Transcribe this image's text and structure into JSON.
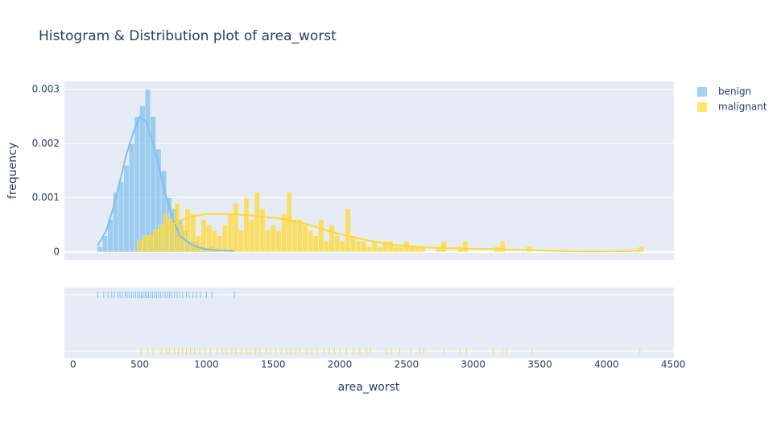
{
  "chart_data": [
    {
      "type": "histogram",
      "title": "Histogram & Distribution plot of area_worst",
      "y_label": "frequency",
      "xlim": [
        -65,
        4505
      ],
      "ylim": [
        -0.00015,
        0.00315
      ],
      "yticks": [
        0,
        0.001,
        0.002,
        0.003
      ],
      "grid": true,
      "legend": "top-right",
      "series": [
        {
          "name": "benign",
          "color": "#7fbfec",
          "bins": [
            180,
            220,
            260,
            300,
            340,
            380,
            420,
            460,
            500,
            540,
            580,
            620,
            660,
            700,
            740,
            780,
            820,
            860,
            900,
            940,
            980,
            1020,
            1060,
            1100,
            1140,
            1180,
            1220
          ],
          "values": [
            0.0001,
            0.0003,
            0.0006,
            0.0011,
            0.0013,
            0.0016,
            0.002,
            0.0025,
            0.0027,
            0.003,
            0.0025,
            0.0019,
            0.0015,
            0.001,
            0.0008,
            0.0006,
            0.0004,
            0.0002,
            0.0002,
            0.0001,
            5e-05,
            0.0001,
            3e-05,
            0,
            3e-05,
            5e-05
          ],
          "kde_x": [
            185,
            250,
            300,
            350,
            400,
            450,
            500,
            550,
            600,
            650,
            700,
            750,
            800,
            850,
            900,
            950,
            1000,
            1100,
            1210
          ],
          "kde_y": [
            0.00012,
            0.0004,
            0.0008,
            0.0013,
            0.0018,
            0.0022,
            0.0025,
            0.0024,
            0.002,
            0.0015,
            0.001,
            0.0006,
            0.0003,
            0.0002,
            0.00012,
            8e-05,
            5e-05,
            3e-05,
            2e-05
          ]
        },
        {
          "name": "malignant",
          "color": "#ffd92f",
          "bins": [
            480,
            520,
            560,
            600,
            640,
            680,
            720,
            760,
            800,
            840,
            880,
            920,
            960,
            1000,
            1040,
            1080,
            1120,
            1160,
            1200,
            1240,
            1280,
            1320,
            1360,
            1400,
            1440,
            1480,
            1520,
            1560,
            1600,
            1640,
            1680,
            1720,
            1760,
            1800,
            1840,
            1880,
            1920,
            1960,
            2000,
            2040,
            2080,
            2120,
            2160,
            2200,
            2240,
            2280,
            2320,
            2360,
            2400,
            2440,
            2480,
            2520,
            2560,
            2600,
            2640,
            2680,
            2720,
            2760,
            2800,
            2840,
            2880,
            2920,
            2960,
            3000,
            3040,
            3080,
            3120,
            3160,
            3200,
            3240,
            3280,
            3320,
            3360,
            3400,
            3440,
            3480,
            3520,
            3560,
            3600,
            3640,
            3680,
            3720,
            3760,
            3800,
            3840,
            3880,
            3920,
            3960,
            4000,
            4040,
            4080,
            4120,
            4160,
            4200,
            4240,
            4280
          ],
          "values": [
            0.0002,
            0.0003,
            0.0003,
            0.0004,
            0.0005,
            0.0007,
            0.0006,
            0.0009,
            0.0005,
            0.0008,
            0.0007,
            0.0003,
            0.0006,
            0.0005,
            0.0004,
            0.0003,
            0.0005,
            0.0007,
            0.0009,
            0.0004,
            0.001,
            0.0006,
            0.0011,
            0.0008,
            0.0004,
            0.0005,
            0.0004,
            0.0007,
            0.0011,
            0.0006,
            0.0006,
            0.0005,
            0.0004,
            0.0003,
            0.0006,
            0.0002,
            0.0005,
            0.0003,
            0.0002,
            0.0008,
            0.0003,
            0.0002,
            0.0002,
            0.0001,
            0.0002,
            0.0001,
            0.0002,
            0.0002,
            0.0001,
            0.0001,
            0.0002,
            0.0001,
            0.0001,
            0.0001,
            0,
            0,
            0.0001,
            0.0002,
            0,
            0,
            0.0001,
            0.0002,
            0,
            0,
            0,
            0,
            0,
            0.0001,
            0.0002,
            0,
            0,
            0,
            0,
            0.0001,
            0,
            0,
            0,
            0,
            0,
            0,
            0,
            0,
            0,
            0,
            0,
            0,
            0,
            0,
            0,
            0,
            0,
            0,
            0,
            0,
            0.0001
          ],
          "kde_x": [
            510,
            600,
            700,
            800,
            900,
            1000,
            1100,
            1200,
            1300,
            1400,
            1500,
            1600,
            1700,
            1800,
            1900,
            2000,
            2200,
            2400,
            2600,
            2800,
            3000,
            3200,
            3400,
            3600,
            3800,
            4000,
            4250
          ],
          "kde_y": [
            0.0002,
            0.0003,
            0.00045,
            0.00058,
            0.00066,
            0.0007,
            0.0007,
            0.0007,
            0.00068,
            0.00066,
            0.00063,
            0.0006,
            0.00055,
            0.00048,
            0.0004,
            0.00033,
            0.00022,
            0.00013,
            9e-05,
            7e-05,
            6e-05,
            5e-05,
            4e-05,
            2e-05,
            1e-05,
            1e-05,
            2e-05
          ]
        }
      ]
    },
    {
      "type": "rug",
      "x_label": "area_worst",
      "xlim": [
        -65,
        4505
      ],
      "xticks": [
        0,
        500,
        1000,
        1500,
        2000,
        2500,
        3000,
        3500,
        4000,
        4500
      ],
      "series": [
        {
          "color": "#7fbfec",
          "values": [
            185,
            230,
            262,
            290,
            310,
            335,
            352,
            370,
            390,
            405,
            420,
            438,
            452,
            470,
            485,
            500,
            512,
            525,
            540,
            552,
            566,
            580,
            595,
            610,
            625,
            640,
            655,
            672,
            690,
            705,
            722,
            740,
            760,
            780,
            800,
            822,
            850,
            870,
            900,
            925,
            955,
            1000,
            1040,
            1210
          ]
        },
        {
          "color": "#ffd92f",
          "values": [
            510,
            560,
            600,
            660,
            700,
            720,
            760,
            790,
            820,
            850,
            880,
            910,
            950,
            990,
            1030,
            1080,
            1120,
            1150,
            1190,
            1220,
            1260,
            1300,
            1330,
            1370,
            1400,
            1450,
            1480,
            1520,
            1560,
            1600,
            1630,
            1670,
            1700,
            1750,
            1790,
            1830,
            1880,
            1920,
            1960,
            2000,
            2050,
            2100,
            2150,
            2200,
            2230,
            2350,
            2390,
            2450,
            2530,
            2600,
            2630,
            2780,
            2900,
            2950,
            3150,
            3220,
            3250,
            3440,
            4250
          ]
        }
      ]
    }
  ]
}
